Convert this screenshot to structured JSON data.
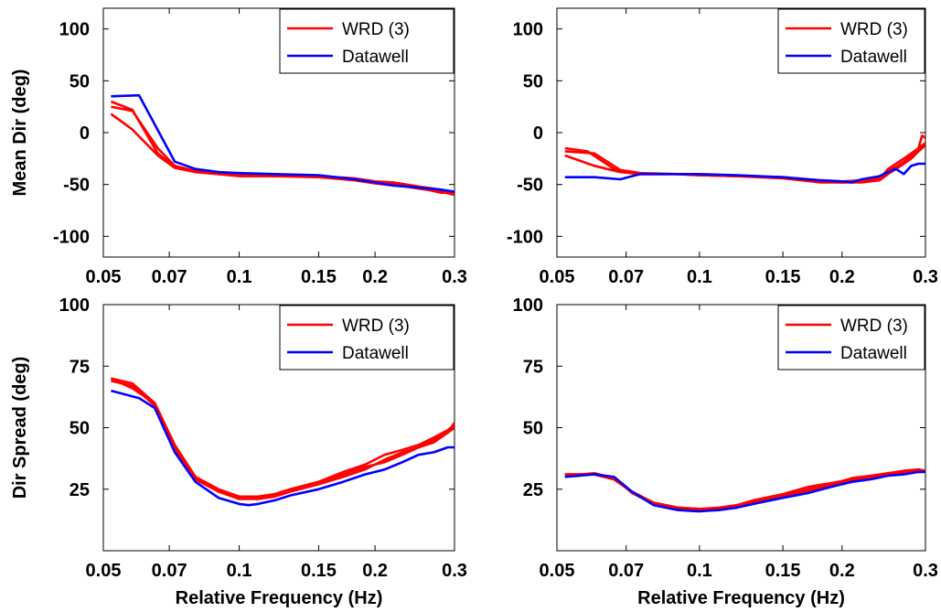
{
  "chart_data": [
    {
      "type": "line",
      "panel": "top-left",
      "ylabel": "Mean Dir (deg)",
      "xlabel": "",
      "xscale": "log",
      "xlim": [
        0.05,
        0.3
      ],
      "ylim": [
        -120,
        120
      ],
      "xticks": [
        0.05,
        0.07,
        0.1,
        0.15,
        0.2,
        0.3
      ],
      "xtick_labels": [
        "0.05",
        "0.07",
        "0.1",
        "0.15",
        "0.2",
        "0.3"
      ],
      "yticks": [
        100,
        50,
        0,
        -50,
        -100
      ],
      "ytick_labels": [
        "100",
        "50",
        "0",
        "-50",
        "-100"
      ],
      "legend": {
        "position": "top-right",
        "entries": [
          {
            "label": "WRD (3)",
            "color": "#ff0000"
          },
          {
            "label": "Datawell",
            "color": "#0000ff"
          }
        ]
      },
      "series": [
        {
          "name": "WRD (3)",
          "color": "#ff0000",
          "x": [
            0.052,
            0.058,
            0.066,
            0.072,
            0.08,
            0.09,
            0.1,
            0.12,
            0.15,
            0.18,
            0.2,
            0.22,
            0.25,
            0.28,
            0.3
          ],
          "y": [
            30,
            22,
            -20,
            -33,
            -38,
            -40,
            -41,
            -42,
            -42,
            -44,
            -47,
            -48,
            -52,
            -55,
            -59
          ]
        },
        {
          "name": "",
          "color": "#ff0000",
          "x": [
            0.052,
            0.058,
            0.066,
            0.072,
            0.08,
            0.09,
            0.1,
            0.12,
            0.15,
            0.18,
            0.2,
            0.22,
            0.25,
            0.28,
            0.3
          ],
          "y": [
            25,
            21,
            -15,
            -32,
            -37,
            -39,
            -41,
            -42,
            -42,
            -45,
            -48,
            -50,
            -54,
            -57,
            -60
          ]
        },
        {
          "name": "",
          "color": "#ff0000",
          "x": [
            0.052,
            0.058,
            0.066,
            0.072,
            0.08,
            0.09,
            0.1,
            0.12,
            0.15,
            0.18,
            0.2,
            0.22,
            0.25,
            0.28,
            0.3
          ],
          "y": [
            18,
            3,
            -22,
            -34,
            -38,
            -40,
            -42,
            -42,
            -43,
            -46,
            -49,
            -51,
            -53,
            -58,
            -58
          ]
        },
        {
          "name": "Datawell",
          "color": "#0000ff",
          "x": [
            0.052,
            0.06,
            0.072,
            0.08,
            0.09,
            0.1,
            0.12,
            0.15,
            0.18,
            0.2,
            0.22,
            0.25,
            0.28,
            0.3
          ],
          "y": [
            35,
            36,
            -28,
            -35,
            -38,
            -39,
            -40,
            -41,
            -45,
            -48,
            -51,
            -53,
            -55,
            -57
          ]
        }
      ]
    },
    {
      "type": "line",
      "panel": "top-right",
      "ylabel": "",
      "xlabel": "",
      "xscale": "log",
      "xlim": [
        0.05,
        0.3
      ],
      "ylim": [
        -120,
        120
      ],
      "xticks": [
        0.05,
        0.07,
        0.1,
        0.15,
        0.2,
        0.3
      ],
      "xtick_labels": [
        "0.05",
        "0.07",
        "0.1",
        "0.15",
        "0.2",
        "0.3"
      ],
      "yticks": [
        100,
        50,
        0,
        -50,
        -100
      ],
      "ytick_labels": [
        "100",
        "50",
        "0",
        "-50",
        "-100"
      ],
      "legend": {
        "position": "top-right",
        "entries": [
          {
            "label": "WRD (3)",
            "color": "#ff0000"
          },
          {
            "label": "Datawell",
            "color": "#0000ff"
          }
        ]
      },
      "series": [
        {
          "name": "WRD (3)",
          "color": "#ff0000",
          "x": [
            0.052,
            0.058,
            0.066,
            0.075,
            0.09,
            0.1,
            0.12,
            0.15,
            0.18,
            0.2,
            0.22,
            0.24,
            0.25,
            0.26,
            0.27,
            0.28,
            0.29,
            0.295,
            0.3
          ],
          "y": [
            -15,
            -18,
            -35,
            -40,
            -40,
            -41,
            -42,
            -43,
            -46,
            -47,
            -46,
            -45,
            -35,
            -30,
            -25,
            -20,
            -15,
            -3,
            -5
          ]
        },
        {
          "name": "",
          "color": "#ff0000",
          "x": [
            0.052,
            0.06,
            0.068,
            0.075,
            0.09,
            0.1,
            0.12,
            0.15,
            0.18,
            0.2,
            0.22,
            0.24,
            0.25,
            0.26,
            0.27,
            0.28,
            0.29,
            0.3
          ],
          "y": [
            -22,
            -32,
            -38,
            -40,
            -40,
            -41,
            -42,
            -43,
            -47,
            -48,
            -47,
            -44,
            -37,
            -33,
            -28,
            -22,
            -15,
            -10
          ]
        },
        {
          "name": "",
          "color": "#ff0000",
          "x": [
            0.052,
            0.06,
            0.068,
            0.075,
            0.09,
            0.1,
            0.12,
            0.15,
            0.18,
            0.2,
            0.22,
            0.24,
            0.25,
            0.26,
            0.27,
            0.28,
            0.29,
            0.3
          ],
          "y": [
            -18,
            -20,
            -36,
            -39,
            -40,
            -41,
            -42,
            -44,
            -48,
            -48,
            -48,
            -46,
            -40,
            -35,
            -30,
            -25,
            -18,
            -12
          ]
        },
        {
          "name": "Datawell",
          "color": "#0000ff",
          "x": [
            0.052,
            0.06,
            0.068,
            0.075,
            0.09,
            0.1,
            0.12,
            0.15,
            0.18,
            0.2,
            0.21,
            0.22,
            0.24,
            0.25,
            0.26,
            0.27,
            0.28,
            0.29,
            0.3
          ],
          "y": [
            -43,
            -43,
            -45,
            -40,
            -40,
            -40,
            -41,
            -43,
            -46,
            -47,
            -48,
            -45,
            -42,
            -38,
            -35,
            -40,
            -32,
            -30,
            -30
          ]
        }
      ]
    },
    {
      "type": "line",
      "panel": "bottom-left",
      "ylabel": "Dir Spread (deg)",
      "xlabel": "Relative Frequency (Hz)",
      "xscale": "log",
      "xlim": [
        0.05,
        0.3
      ],
      "ylim": [
        0,
        100
      ],
      "xticks": [
        0.05,
        0.07,
        0.1,
        0.15,
        0.2,
        0.3
      ],
      "xtick_labels": [
        "0.05",
        "0.07",
        "0.1",
        "0.15",
        "0.2",
        "0.3"
      ],
      "yticks": [
        100,
        75,
        50,
        25
      ],
      "ytick_labels": [
        "100",
        "75",
        "50",
        "25"
      ],
      "legend": {
        "position": "top-right",
        "entries": [
          {
            "label": "WRD (3)",
            "color": "#ff0000"
          },
          {
            "label": "Datawell",
            "color": "#0000ff"
          }
        ]
      },
      "series": [
        {
          "name": "WRD (3)",
          "color": "#ff0000",
          "x": [
            0.052,
            0.058,
            0.065,
            0.072,
            0.08,
            0.09,
            0.1,
            0.11,
            0.12,
            0.13,
            0.15,
            0.17,
            0.19,
            0.21,
            0.23,
            0.25,
            0.27,
            0.29,
            0.3
          ],
          "y": [
            70,
            68,
            60,
            42,
            30,
            25,
            22,
            22,
            23,
            25,
            28,
            32,
            35,
            39,
            41,
            43,
            46,
            49,
            51
          ]
        },
        {
          "name": "",
          "color": "#ff0000",
          "x": [
            0.052,
            0.058,
            0.065,
            0.072,
            0.08,
            0.09,
            0.1,
            0.11,
            0.12,
            0.13,
            0.15,
            0.17,
            0.19,
            0.21,
            0.23,
            0.25,
            0.27,
            0.29,
            0.3
          ],
          "y": [
            69,
            67,
            59,
            41,
            29,
            24,
            22,
            21,
            22,
            24,
            27,
            30,
            33,
            37,
            40,
            42,
            44,
            48,
            50
          ]
        },
        {
          "name": "",
          "color": "#ff0000",
          "x": [
            0.052,
            0.058,
            0.065,
            0.072,
            0.08,
            0.09,
            0.1,
            0.11,
            0.12,
            0.13,
            0.15,
            0.17,
            0.19,
            0.21,
            0.23,
            0.25,
            0.27,
            0.29,
            0.3
          ],
          "y": [
            70,
            66,
            60,
            43,
            30,
            24,
            21,
            21,
            23,
            25,
            28,
            31,
            34,
            36,
            39,
            42,
            45,
            48,
            52
          ]
        },
        {
          "name": "Datawell",
          "color": "#0000ff",
          "x": [
            0.052,
            0.06,
            0.065,
            0.072,
            0.08,
            0.09,
            0.1,
            0.105,
            0.11,
            0.12,
            0.13,
            0.15,
            0.17,
            0.19,
            0.21,
            0.23,
            0.25,
            0.27,
            0.29,
            0.3
          ],
          "y": [
            65,
            62,
            58,
            40,
            28,
            21.5,
            19,
            18.5,
            19,
            20.5,
            22.5,
            25,
            28,
            31,
            33,
            36,
            39,
            40,
            42,
            42
          ]
        }
      ]
    },
    {
      "type": "line",
      "panel": "bottom-right",
      "ylabel": "",
      "xlabel": "Relative Frequency (Hz)",
      "xscale": "log",
      "xlim": [
        0.05,
        0.3
      ],
      "ylim": [
        0,
        100
      ],
      "xticks": [
        0.05,
        0.07,
        0.1,
        0.15,
        0.2,
        0.3
      ],
      "xtick_labels": [
        "0.05",
        "0.07",
        "0.1",
        "0.15",
        "0.2",
        "0.3"
      ],
      "yticks": [
        100,
        75,
        50,
        25
      ],
      "ytick_labels": [
        "100",
        "75",
        "50",
        "25"
      ],
      "legend": {
        "position": "top-right",
        "entries": [
          {
            "label": "WRD (3)",
            "color": "#ff0000"
          },
          {
            "label": "Datawell",
            "color": "#0000ff"
          }
        ]
      },
      "series": [
        {
          "name": "WRD (3)",
          "color": "#ff0000",
          "x": [
            0.052,
            0.06,
            0.066,
            0.072,
            0.08,
            0.09,
            0.1,
            0.11,
            0.12,
            0.13,
            0.15,
            0.17,
            0.19,
            0.21,
            0.23,
            0.25,
            0.27,
            0.29,
            0.3
          ],
          "y": [
            31,
            31,
            29,
            24,
            19.5,
            17.5,
            17,
            17.5,
            18.5,
            20,
            22.5,
            25,
            27,
            29.5,
            30.5,
            31.5,
            32.5,
            33,
            32.5
          ]
        },
        {
          "name": "",
          "color": "#ff0000",
          "x": [
            0.052,
            0.06,
            0.066,
            0.072,
            0.08,
            0.09,
            0.1,
            0.11,
            0.12,
            0.13,
            0.15,
            0.17,
            0.19,
            0.21,
            0.23,
            0.25,
            0.27,
            0.29,
            0.3
          ],
          "y": [
            30.5,
            31.5,
            29.5,
            23.5,
            19,
            17,
            16.5,
            17,
            18,
            19.5,
            22,
            24.5,
            26.5,
            28.5,
            30,
            31,
            32,
            32.5,
            32
          ]
        },
        {
          "name": "",
          "color": "#ff0000",
          "x": [
            0.052,
            0.06,
            0.066,
            0.072,
            0.08,
            0.09,
            0.1,
            0.11,
            0.12,
            0.13,
            0.15,
            0.17,
            0.19,
            0.21,
            0.23,
            0.25,
            0.27,
            0.29,
            0.3
          ],
          "y": [
            31,
            31,
            29,
            24,
            19.5,
            17.5,
            17,
            17,
            18.5,
            20.5,
            23,
            26,
            27.5,
            29,
            30,
            31,
            31.5,
            32.5,
            32.5
          ]
        },
        {
          "name": "Datawell",
          "color": "#0000ff",
          "x": [
            0.052,
            0.06,
            0.066,
            0.072,
            0.08,
            0.09,
            0.1,
            0.11,
            0.12,
            0.13,
            0.15,
            0.17,
            0.19,
            0.21,
            0.23,
            0.25,
            0.27,
            0.29,
            0.3
          ],
          "y": [
            30,
            31,
            30,
            24,
            18.5,
            16.5,
            16,
            16.5,
            17.5,
            19,
            21.5,
            23.5,
            26,
            28,
            29,
            30.5,
            31,
            32,
            32
          ]
        }
      ]
    }
  ]
}
